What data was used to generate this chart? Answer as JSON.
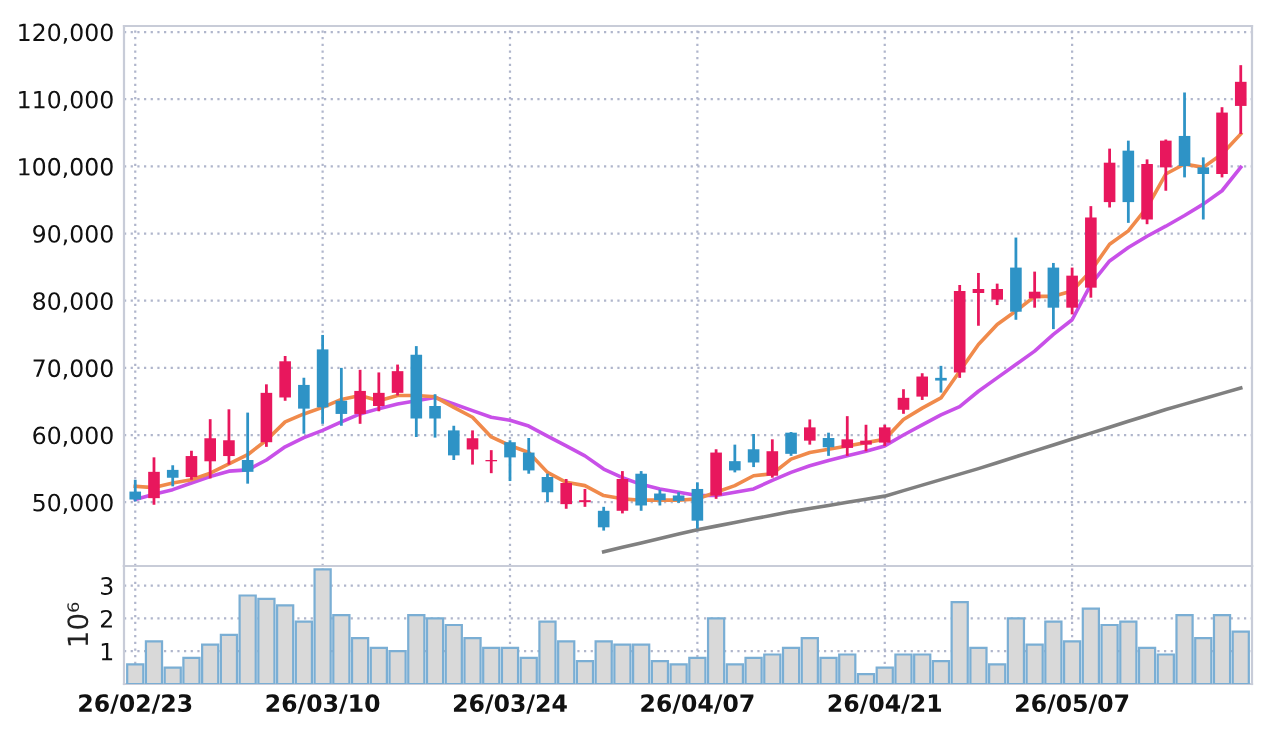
{
  "chart_data": [
    {
      "type": "candlestick",
      "tick_labels": "y",
      "grid": true,
      "categories": [
        null,
        null,
        null,
        null,
        null,
        null,
        null,
        null,
        null,
        null,
        null,
        null,
        null,
        null,
        null,
        null,
        null,
        null,
        null,
        null,
        null,
        null,
        null,
        null,
        null,
        null,
        null,
        null,
        null,
        null,
        null,
        null,
        null,
        null,
        null,
        null,
        null,
        null,
        null,
        null,
        null,
        null,
        null,
        null,
        null,
        null,
        null,
        null,
        null,
        null,
        null,
        null,
        null,
        null,
        null,
        null,
        null,
        null,
        null,
        null
      ],
      "ohlc": [
        [
          51580,
          53340,
          50110,
          50400
        ],
        [
          50600,
          56680,
          49620,
          54520
        ],
        [
          54810,
          55500,
          52360,
          53640
        ],
        [
          53740,
          57660,
          53340,
          56870
        ],
        [
          56090,
          62360,
          53540,
          59520
        ],
        [
          56870,
          63830,
          55600,
          59220
        ],
        [
          56280,
          63340,
          52760,
          54520
        ],
        [
          58930,
          67550,
          58240,
          66280
        ],
        [
          65590,
          71770,
          65100,
          70980
        ],
        [
          67460,
          68530,
          60200,
          63930
        ],
        [
          72750,
          74900,
          61670,
          64120
        ],
        [
          65100,
          70000,
          61380,
          63140
        ],
        [
          63140,
          69710,
          61670,
          66570
        ],
        [
          64320,
          69320,
          63540,
          66280
        ],
        [
          66280,
          70490,
          65890,
          69510
        ],
        [
          71960,
          73240,
          59710,
          62460
        ],
        [
          64320,
          66080,
          59620,
          62460
        ],
        [
          60690,
          61380,
          56280,
          56970
        ],
        [
          57850,
          60690,
          55600,
          59520
        ],
        [
          56090,
          57750,
          54320,
          56280
        ],
        [
          58930,
          59220,
          53150,
          56670
        ],
        [
          57390,
          59560,
          54240,
          54730
        ],
        [
          53750,
          54240,
          50000,
          51480
        ],
        [
          49710,
          53450,
          49020,
          52860
        ],
        [
          50000,
          51970,
          49310,
          50300
        ],
        [
          48720,
          49310,
          45770,
          46260
        ],
        [
          48720,
          54630,
          48330,
          53450
        ],
        [
          54240,
          54630,
          48720,
          49510
        ],
        [
          51290,
          51870,
          49510,
          50300
        ],
        [
          51000,
          51480,
          49900,
          50200
        ],
        [
          51970,
          52960,
          46070,
          47250
        ],
        [
          50990,
          57880,
          50500,
          57390
        ],
        [
          56110,
          58570,
          54440,
          54730
        ],
        [
          57880,
          60150,
          55230,
          55910
        ],
        [
          53940,
          59360,
          53650,
          57590
        ],
        [
          60350,
          60450,
          56900,
          57200
        ],
        [
          59160,
          62320,
          58570,
          61140
        ],
        [
          59560,
          60350,
          56900,
          58180
        ],
        [
          58080,
          62810,
          56900,
          59360
        ],
        [
          58570,
          61530,
          57590,
          59160
        ],
        [
          58870,
          61530,
          58380,
          61140
        ],
        [
          63760,
          66820,
          63160,
          65540
        ],
        [
          65720,
          69200,
          65220,
          68710
        ],
        [
          68510,
          70300,
          66320,
          68110
        ],
        [
          69300,
          82340,
          68510,
          81440
        ],
        [
          81150,
          84130,
          76270,
          81740
        ],
        [
          80150,
          82540,
          79350,
          81740
        ],
        [
          84930,
          89400,
          77160,
          78360
        ],
        [
          80350,
          84330,
          78960,
          81340
        ],
        [
          84930,
          85620,
          75770,
          78960
        ],
        [
          78960,
          84930,
          77960,
          83730
        ],
        [
          81940,
          94080,
          80450,
          92390
        ],
        [
          94680,
          102640,
          93880,
          100550
        ],
        [
          102340,
          103830,
          91590,
          94680
        ],
        [
          92090,
          101040,
          91390,
          100350
        ],
        [
          99850,
          104000,
          96370,
          103830
        ],
        [
          104530,
          111000,
          98360,
          100050
        ],
        [
          99850,
          101340,
          92090,
          98860
        ],
        [
          98860,
          108810,
          98360,
          108010
        ],
        [
          109000,
          115070,
          104830,
          112590
        ]
      ],
      "colors": [
        "#2e93c6",
        "#e8175d",
        "#2e93c6",
        "#e8175d",
        "#e8175d",
        "#e8175d",
        "#2e93c6",
        "#e8175d",
        "#e8175d",
        "#2e93c6",
        "#2e93c6",
        "#2e93c6",
        "#e8175d",
        "#e8175d",
        "#e8175d",
        "#2e93c6",
        "#2e93c6",
        "#2e93c6",
        "#e8175d",
        "#e8175d",
        "#2e93c6",
        "#2e93c6",
        "#2e93c6",
        "#e8175d",
        "#e8175d",
        "#2e93c6",
        "#e8175d",
        "#2e93c6",
        "#2e93c6",
        "#2e93c6",
        "#2e93c6",
        "#e8175d",
        "#2e93c6",
        "#2e93c6",
        "#e8175d",
        "#2e93c6",
        "#e8175d",
        "#2e93c6",
        "#e8175d",
        "#e8175d",
        "#e8175d",
        "#e8175d",
        "#e8175d",
        "#2e93c6",
        "#e8175d",
        "#e8175d",
        "#e8175d",
        "#2e93c6",
        "#e8175d",
        "#2e93c6",
        "#e8175d",
        "#e8175d",
        "#e8175d",
        "#2e93c6",
        "#e8175d",
        "#e8175d",
        "#2e93c6",
        "#2e93c6",
        "#e8175d",
        "#e8175d"
      ],
      "series": [
        {
          "type": "line",
          "color": "#c850e8",
          "values": [
            50400,
            51190,
            51870,
            52850,
            53830,
            54620,
            54810,
            56280,
            58240,
            59620,
            60690,
            61960,
            63140,
            63930,
            64610,
            65100,
            65590,
            64610,
            63630,
            62650,
            62200,
            61330,
            59850,
            58380,
            56900,
            54930,
            53650,
            52660,
            51970,
            51480,
            50990,
            50990,
            51480,
            51970,
            53250,
            54440,
            55420,
            56210,
            56900,
            57590,
            58380,
            60000,
            61500,
            63000,
            64230,
            66520,
            68510,
            70500,
            72490,
            74980,
            77160,
            82440,
            85920,
            87910,
            89600,
            91090,
            92690,
            94380,
            96370,
            99850
          ]
        },
        {
          "type": "line",
          "color": "#f08a4b",
          "values": [
            52360,
            52170,
            52850,
            53340,
            54320,
            55700,
            57070,
            59220,
            61960,
            63140,
            64120,
            65300,
            65890,
            65100,
            65890,
            65890,
            65690,
            64120,
            62650,
            59710,
            58440,
            57390,
            54440,
            52960,
            52470,
            50990,
            50500,
            50300,
            50300,
            50300,
            50500,
            51480,
            52470,
            53940,
            54240,
            56410,
            57390,
            57880,
            58380,
            58870,
            59360,
            62300,
            64000,
            65520,
            69500,
            73480,
            76470,
            78460,
            80650,
            80650,
            81440,
            84430,
            88410,
            90400,
            93880,
            98860,
            100350,
            99850,
            101840,
            104830
          ]
        },
        {
          "type": "line",
          "color": "#808080",
          "values": [
            null,
            null,
            null,
            null,
            null,
            null,
            null,
            null,
            null,
            null,
            null,
            null,
            null,
            null,
            null,
            null,
            null,
            null,
            null,
            null,
            null,
            null,
            null,
            null,
            null,
            42620,
            43280,
            43940,
            44600,
            45250,
            45900,
            46440,
            46980,
            47520,
            48060,
            48600,
            49060,
            49520,
            49980,
            50440,
            50900,
            51720,
            52540,
            53360,
            54180,
            55000,
            55880,
            56760,
            57640,
            58520,
            59400,
            60280,
            61160,
            62040,
            62920,
            63800,
            64600,
            65400,
            66200,
            67000
          ]
        }
      ],
      "ylim": [
        40500,
        120900
      ],
      "yticks": [
        {
          "value": 50000,
          "label": "50,000"
        },
        {
          "value": 60000,
          "label": "60,000"
        },
        {
          "value": 70000,
          "label": "70,000"
        },
        {
          "value": 80000,
          "label": "80,000"
        },
        {
          "value": 90000,
          "label": "90,000"
        },
        {
          "value": 100000,
          "label": "100,000"
        },
        {
          "value": 110000,
          "label": "110,000"
        },
        {
          "value": 120000,
          "label": "120,000"
        }
      ]
    },
    {
      "type": "bar",
      "grid": true,
      "ylabel": "10⁶",
      "color": "#d9d9d9",
      "categories": [
        "26/02/23",
        null,
        null,
        null,
        null,
        null,
        null,
        null,
        null,
        null,
        "26/03/10",
        null,
        null,
        null,
        null,
        null,
        null,
        null,
        null,
        null,
        "26/03/24",
        null,
        null,
        null,
        null,
        null,
        null,
        null,
        null,
        null,
        "26/04/07",
        null,
        null,
        null,
        null,
        null,
        null,
        null,
        null,
        null,
        "26/04/21",
        null,
        null,
        null,
        null,
        null,
        null,
        null,
        null,
        null,
        "26/05/07",
        null,
        null,
        null,
        null,
        null,
        null,
        null,
        null,
        null
      ],
      "values": [
        0.6,
        1.3,
        0.5,
        0.8,
        1.2,
        1.5,
        2.7,
        2.6,
        2.4,
        1.9,
        3.5,
        2.1,
        1.4,
        1.1,
        1.0,
        2.1,
        2.0,
        1.8,
        1.4,
        1.1,
        1.1,
        0.8,
        1.9,
        1.3,
        0.7,
        1.3,
        1.2,
        1.2,
        0.7,
        0.6,
        0.8,
        2.0,
        0.6,
        0.8,
        0.9,
        1.1,
        1.4,
        0.8,
        0.9,
        0.3,
        0.5,
        0.9,
        0.9,
        0.7,
        2.5,
        1.1,
        0.6,
        2.0,
        1.2,
        1.9,
        1.3,
        2.3,
        1.8,
        1.9,
        1.1,
        0.9,
        2.1,
        1.4,
        2.1,
        1.6
      ],
      "ylim": [
        0,
        3.6
      ],
      "yticks": [
        1,
        2,
        3
      ]
    }
  ]
}
